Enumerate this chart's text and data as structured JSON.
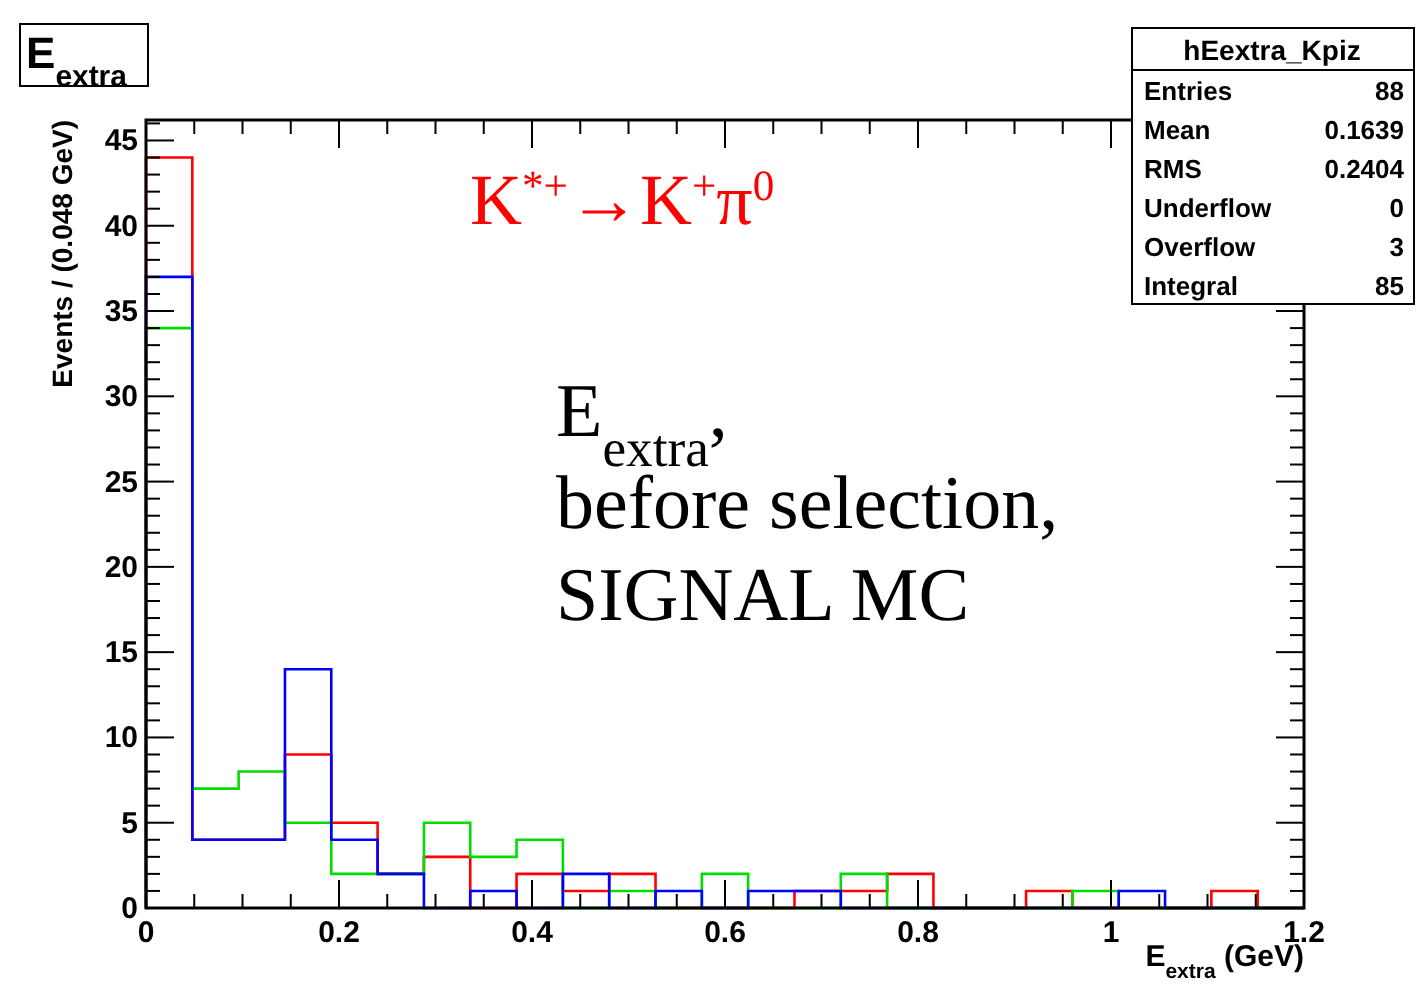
{
  "chart_data": {
    "type": "histogram",
    "title": "E$_{extra}$",
    "xlabel": "E$_{extra}$ (GeV)",
    "ylabel": "Events / (0.048 GeV)",
    "bins": [
      0,
      0.048,
      0.096,
      0.144,
      0.192,
      0.24,
      0.288,
      0.336,
      0.384,
      0.432,
      0.48,
      0.528,
      0.576,
      0.624,
      0.672,
      0.72,
      0.768,
      0.816,
      0.864,
      0.912,
      0.96,
      1.008,
      1.056,
      1.104,
      1.152,
      1.2
    ],
    "series": [
      {
        "color": "#ff0000",
        "values": [
          44,
          4,
          4,
          9,
          5,
          2,
          3,
          0,
          2,
          1,
          2,
          0,
          0,
          0,
          1,
          1,
          2,
          0,
          0,
          1,
          0,
          0,
          0,
          1,
          0
        ]
      },
      {
        "color": "#00dd00",
        "values": [
          34,
          7,
          8,
          5,
          2,
          2,
          5,
          3,
          4,
          0,
          1,
          0,
          2,
          0,
          0,
          2,
          0,
          0,
          0,
          0,
          1,
          0,
          0,
          0,
          0
        ]
      },
      {
        "color": "#0000ff",
        "values": [
          37,
          4,
          4,
          14,
          4,
          2,
          0,
          1,
          0,
          2,
          0,
          1,
          0,
          1,
          1,
          0,
          0,
          0,
          0,
          0,
          0,
          1,
          0,
          0,
          0
        ]
      }
    ],
    "xlim": [
      0,
      1.2
    ],
    "ylim": [
      0,
      46.2
    ],
    "xticks": [
      0,
      0.2,
      0.4,
      0.6,
      0.8,
      {
        "value": 1,
        "label": "1"
      },
      1.2
    ],
    "yticks": [
      0,
      5,
      10,
      15,
      20,
      25,
      30,
      35,
      40,
      45
    ],
    "grid": false,
    "annotations": [
      "K$^{*+}$→K$^{+}$π$^{0}$",
      "E$_{extra}$,",
      "before selection,",
      "SIGNAL MC",
      "hEextra_Kpiz",
      "Entries 88",
      "Mean 0.1639",
      "RMS 0.2404",
      "Underflow 0",
      "Overflow 3",
      "Integral 85"
    ]
  }
}
